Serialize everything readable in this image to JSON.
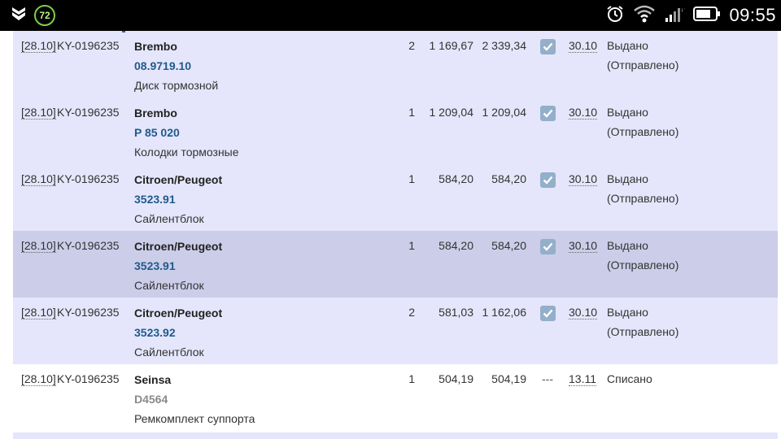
{
  "statusbar": {
    "badge": "72",
    "time": "09:55"
  },
  "rows": [
    {
      "date": "[28.10]",
      "order": "KY-0196235",
      "brand": "Brembo",
      "code": "08.9719.10",
      "desc": "Диск тормозной",
      "qty": "2",
      "price": "1 169,67",
      "total": "2 339,34",
      "checked": true,
      "delivery": "30.10",
      "status": "Выдано",
      "substatus": "(Отправлено)"
    },
    {
      "date": "[28.10]",
      "order": "KY-0196235",
      "brand": "Brembo",
      "code": "P 85 020",
      "desc": "Колодки тормозные",
      "qty": "1",
      "price": "1 209,04",
      "total": "1 209,04",
      "checked": true,
      "delivery": "30.10",
      "status": "Выдано",
      "substatus": "(Отправлено)"
    },
    {
      "date": "[28.10]",
      "order": "KY-0196235",
      "brand": "Citroen/Peugeot",
      "code": "3523.91",
      "desc": "Сайлентблок",
      "qty": "1",
      "price": "584,20",
      "total": "584,20",
      "checked": true,
      "delivery": "30.10",
      "status": "Выдано",
      "substatus": "(Отправлено)"
    },
    {
      "date": "[28.10]",
      "order": "KY-0196235",
      "brand": "Citroen/Peugeot",
      "code": "3523.91",
      "desc": "Сайлентблок",
      "qty": "1",
      "price": "584,20",
      "total": "584,20",
      "checked": true,
      "delivery": "30.10",
      "status": "Выдано",
      "substatus": "(Отправлено)"
    },
    {
      "date": "[28.10]",
      "order": "KY-0196235",
      "brand": "Citroen/Peugeot",
      "code": "3523.92",
      "desc": "Сайлентблок",
      "qty": "2",
      "price": "581,03",
      "total": "1 162,06",
      "checked": true,
      "delivery": "30.10",
      "status": "Выдано",
      "substatus": "(Отправлено)"
    },
    {
      "date": "[28.10]",
      "order": "KY-0196235",
      "brand": "Seinsa",
      "code": "D4564",
      "desc": "Ремкомплект суппорта",
      "qty": "1",
      "price": "504,19",
      "total": "504,19",
      "checked": false,
      "check_text": "---",
      "delivery": "13.11",
      "status": "Списано",
      "substatus": ""
    }
  ]
}
